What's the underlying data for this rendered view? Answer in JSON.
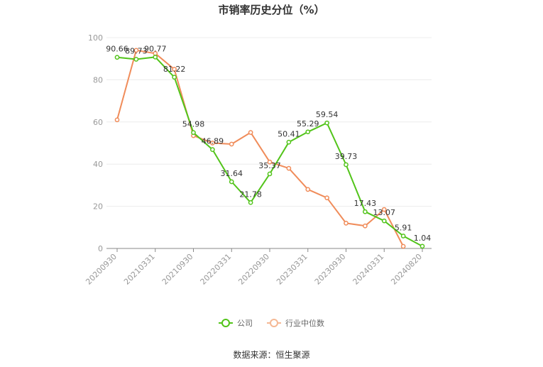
{
  "chart_data": {
    "type": "line",
    "title": "市销率历史分位（%）",
    "xlabel": "",
    "ylabel": "",
    "ylim": [
      0,
      100
    ],
    "yticks": [
      0,
      20,
      40,
      60,
      80,
      100
    ],
    "xtick_labels": [
      "20200930",
      "20210331",
      "20210930",
      "20220331",
      "20220930",
      "20230331",
      "20230930",
      "20240331",
      "20240820"
    ],
    "grid": true,
    "legend_position": "bottom-center",
    "series": [
      {
        "name": "公司",
        "color": "#52c41a",
        "values": [
          90.66,
          89.73,
          90.77,
          81.22,
          54.98,
          46.89,
          31.64,
          21.78,
          35.37,
          50.41,
          55.29,
          59.54,
          39.73,
          17.43,
          13.07,
          5.91,
          1.04
        ],
        "data_labels": [
          "90.66",
          "89.73",
          "90.77",
          "81.22",
          "54.98",
          "46.89",
          "31.64",
          "21.78",
          "35.37",
          "50.41",
          "55.29",
          "59.54",
          "39.73",
          "17.43",
          "13.07",
          "5.91",
          "1.04"
        ]
      },
      {
        "name": "行业中位数",
        "color": "#f08c5a",
        "values": [
          61,
          94,
          92.5,
          85,
          53.5,
          50,
          49.5,
          55,
          41,
          38,
          28,
          24,
          12,
          10.7,
          18.5,
          1,
          null
        ]
      }
    ]
  },
  "source": "数据来源：恒生聚源"
}
